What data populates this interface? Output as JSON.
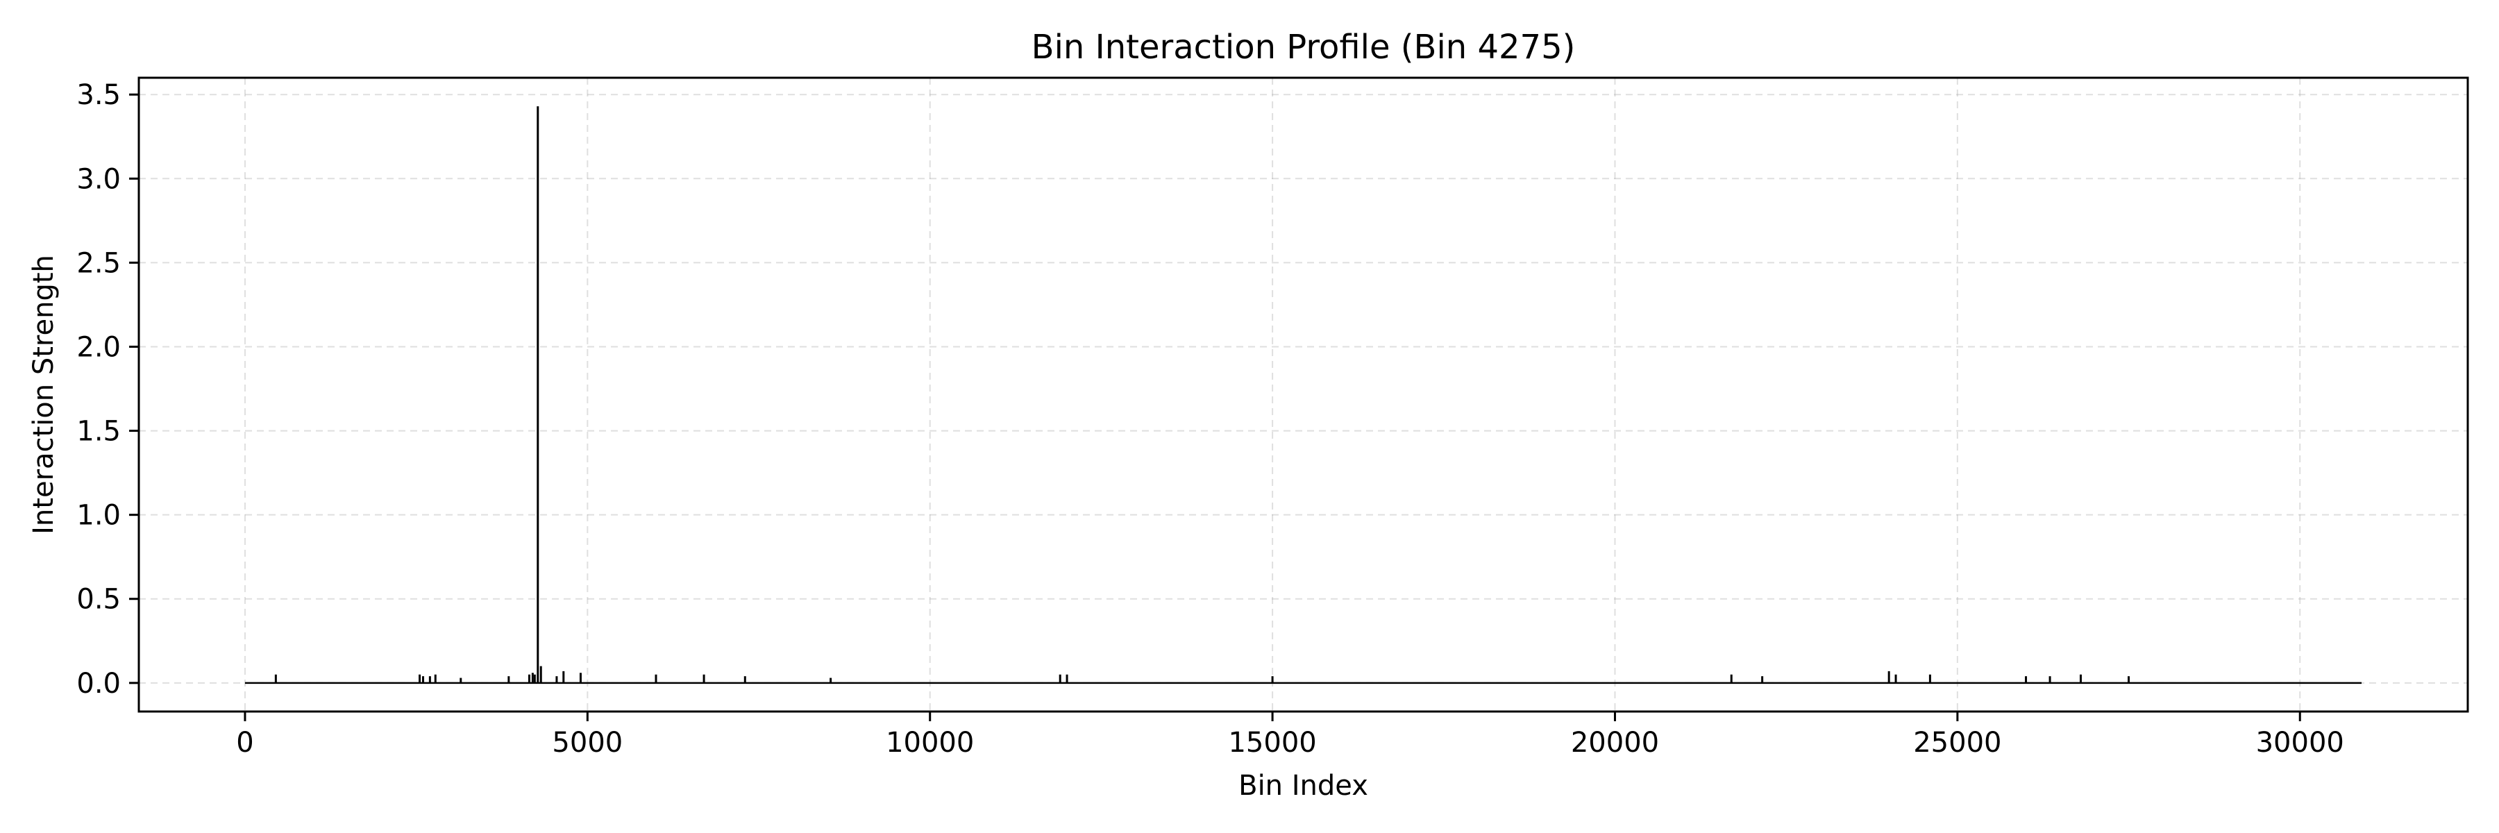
{
  "chart_data": {
    "type": "line",
    "title": "Bin Interaction Profile (Bin 4275)",
    "xlabel": "Bin Index",
    "ylabel": "Interaction Strength",
    "xlim": [
      -1550,
      32450
    ],
    "ylim": [
      -0.17,
      3.6
    ],
    "xticks": [
      0,
      5000,
      10000,
      15000,
      20000,
      25000,
      30000
    ],
    "yticks": [
      0.0,
      0.5,
      1.0,
      1.5,
      2.0,
      2.5,
      3.0,
      3.5
    ],
    "xtick_labels": [
      "0",
      "5000",
      "10000",
      "15000",
      "20000",
      "25000",
      "30000"
    ],
    "ytick_labels": [
      "0.0",
      "0.5",
      "1.0",
      "1.5",
      "2.0",
      "2.5",
      "3.0",
      "3.5"
    ],
    "grid": true,
    "x_range": [
      0,
      30900
    ],
    "baseline": 0.0,
    "color": "#000000",
    "series": [
      {
        "x": [
          450,
          2550,
          2600,
          2700,
          2780,
          3150,
          3850,
          4150,
          4200,
          4230,
          4275,
          4320,
          4550,
          4650,
          4900,
          6000,
          6700,
          7300,
          8550,
          11900,
          12000,
          15000,
          21700,
          22150,
          24000,
          24100,
          24600,
          26000,
          26350,
          26800,
          27500
        ],
        "y": [
          0.05,
          0.05,
          0.04,
          0.04,
          0.05,
          0.03,
          0.04,
          0.05,
          0.06,
          0.05,
          3.43,
          0.1,
          0.04,
          0.07,
          0.06,
          0.05,
          0.05,
          0.04,
          0.03,
          0.05,
          0.05,
          0.04,
          0.05,
          0.04,
          0.07,
          0.05,
          0.05,
          0.04,
          0.04,
          0.05,
          0.04
        ]
      }
    ]
  }
}
